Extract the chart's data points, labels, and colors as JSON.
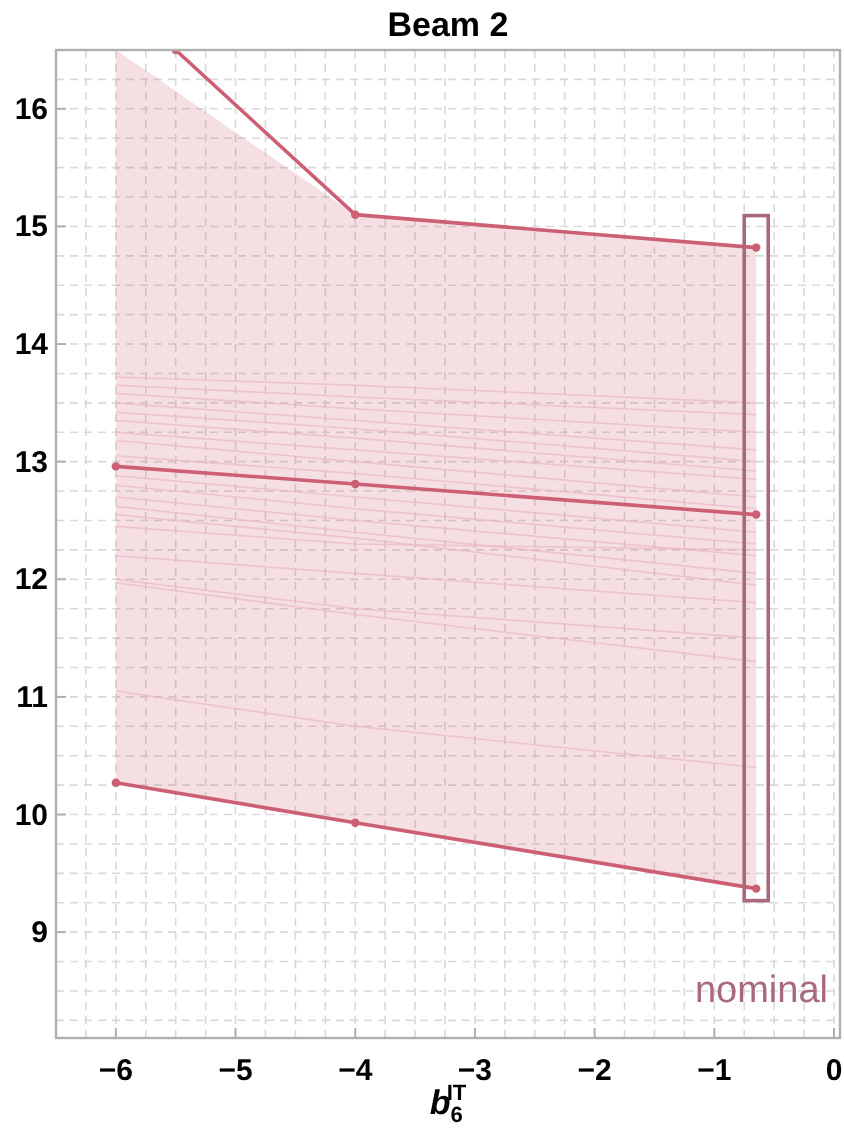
{
  "chart_data": {
    "type": "line",
    "title": "Beam 2",
    "xlabel": "b$_{6}$$^{IT}$",
    "x": [
      -6,
      -4,
      -0.65
    ],
    "xlim": [
      -6.5,
      0.05
    ],
    "ylim": [
      8.1,
      16.5
    ],
    "xticks": [
      -6,
      -5,
      -4,
      -3,
      -2,
      -1,
      0
    ],
    "yticks": [
      9,
      10,
      11,
      12,
      13,
      14,
      15,
      16
    ],
    "grid": true,
    "marker": "circle",
    "series": [
      {
        "color": "#eab8c3",
        "marker": "none",
        "values": [
          13.72,
          13.65,
          13.5
        ]
      },
      {
        "color": "#eab8c3",
        "marker": "none",
        "values": [
          13.65,
          13.55,
          13.4
        ]
      },
      {
        "color": "#eab8c3",
        "marker": "none",
        "values": [
          13.58,
          13.45,
          13.25
        ]
      },
      {
        "color": "#eab8c3",
        "marker": "none",
        "values": [
          13.5,
          13.35,
          13.1
        ]
      },
      {
        "color": "#eab8c3",
        "marker": "none",
        "values": [
          13.42,
          13.28,
          13.0
        ]
      },
      {
        "color": "#eab8c3",
        "marker": "none",
        "values": [
          13.35,
          13.2,
          12.92
        ]
      },
      {
        "color": "#eab8c3",
        "marker": "none",
        "values": [
          13.25,
          13.1,
          12.85
        ]
      },
      {
        "color": "#eab8c3",
        "marker": "none",
        "values": [
          13.18,
          13.0,
          12.7
        ]
      },
      {
        "color": "#eab8c3",
        "marker": "none",
        "values": [
          13.05,
          12.9,
          12.6
        ]
      },
      {
        "color": "#eab8c3",
        "marker": "none",
        "values": [
          12.88,
          12.7,
          12.4
        ]
      },
      {
        "color": "#eab8c3",
        "marker": "none",
        "values": [
          12.8,
          12.6,
          12.3
        ]
      },
      {
        "color": "#eab8c3",
        "marker": "none",
        "values": [
          12.7,
          12.5,
          12.2
        ]
      },
      {
        "color": "#eab8c3",
        "marker": "none",
        "values": [
          12.62,
          12.4,
          12.05
        ]
      },
      {
        "color": "#eab8c3",
        "marker": "none",
        "values": [
          12.55,
          12.35,
          11.95
        ]
      },
      {
        "color": "#eab8c3",
        "marker": "none",
        "values": [
          12.45,
          12.3,
          12.25
        ]
      },
      {
        "color": "#eab8c3",
        "marker": "none",
        "values": [
          12.2,
          12.05,
          11.8
        ]
      },
      {
        "color": "#eab8c3",
        "marker": "none",
        "values": [
          12.0,
          11.75,
          11.5
        ]
      },
      {
        "color": "#eab8c3",
        "marker": "none",
        "values": [
          11.97,
          11.7,
          11.3
        ]
      },
      {
        "color": "#eab8c3",
        "marker": "none",
        "values": [
          11.05,
          10.75,
          10.4
        ]
      },
      {
        "color": "#cc5f74",
        "values": [
          12.96,
          12.81,
          12.55
        ],
        "lower": [
          10.27,
          9.93,
          9.37
        ],
        "upper": [
          16.5,
          15.1,
          14.82
        ]
      },
      {
        "color": "#cc5f74",
        "values": [
          10.27,
          9.93,
          9.37
        ]
      },
      {
        "color": "#cc5f74",
        "x": [
          -5.5,
          -4,
          -0.65
        ],
        "values": [
          16.5,
          15.1,
          14.82
        ]
      }
    ],
    "annotations": [
      {
        "text": "nominal",
        "x": -0.65,
        "y": 9.37
      }
    ]
  }
}
